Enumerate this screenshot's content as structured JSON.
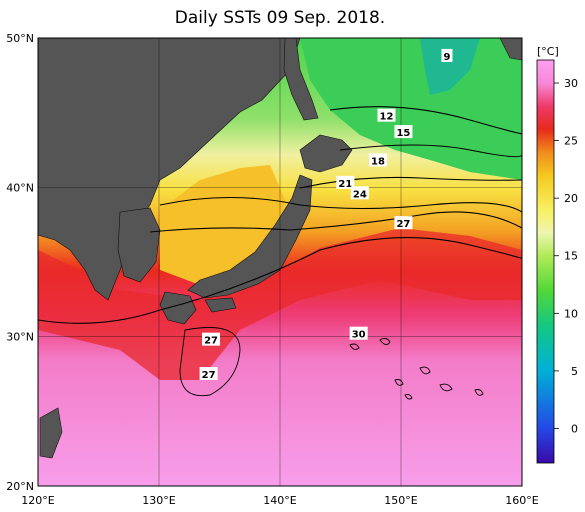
{
  "title": "Daily SSTs 09 Sep. 2018.",
  "map": {
    "lon_min": 120,
    "lon_max": 160,
    "lat_min": 20,
    "lat_max": 50,
    "lat_ticks": [
      "50°N",
      "40°N",
      "30°N",
      "20°N"
    ],
    "lon_ticks": [
      "120°E",
      "130°E",
      "140°E",
      "150°E",
      "160°E"
    ]
  },
  "isotherm_labels": [
    {
      "text": "9",
      "lon": 153.8,
      "lat": 48.8
    },
    {
      "text": "12",
      "lon": 148.8,
      "lat": 44.8
    },
    {
      "text": "15",
      "lon": 150.2,
      "lat": 43.7
    },
    {
      "text": "18",
      "lon": 148.1,
      "lat": 41.8
    },
    {
      "text": "21",
      "lon": 145.4,
      "lat": 40.3
    },
    {
      "text": "24",
      "lon": 146.6,
      "lat": 39.6
    },
    {
      "text": "27",
      "lon": 150.2,
      "lat": 37.6
    },
    {
      "text": "30",
      "lon": 146.5,
      "lat": 30.2
    },
    {
      "text": "27",
      "lon": 134.3,
      "lat": 29.8
    },
    {
      "text": "27",
      "lon": 134.1,
      "lat": 27.5
    }
  ],
  "colorbar": {
    "unit": "[°C]",
    "min": -3,
    "max": 32,
    "ticks": [
      "30",
      "25",
      "20",
      "15",
      "10",
      "5",
      "0"
    ],
    "tick_values": [
      30,
      25,
      20,
      15,
      10,
      5,
      0
    ],
    "stops": [
      {
        "v": -3,
        "c": "#3a0aa8"
      },
      {
        "v": 0,
        "c": "#2448e6"
      },
      {
        "v": 5,
        "c": "#00b0d8"
      },
      {
        "v": 9,
        "c": "#14c880"
      },
      {
        "v": 12,
        "c": "#52d838"
      },
      {
        "v": 15,
        "c": "#b0ea58"
      },
      {
        "v": 17,
        "c": "#eef6b0"
      },
      {
        "v": 19,
        "c": "#f8f060"
      },
      {
        "v": 22,
        "c": "#f4c820"
      },
      {
        "v": 24,
        "c": "#f28a1c"
      },
      {
        "v": 26,
        "c": "#e82a1c"
      },
      {
        "v": 28,
        "c": "#ee3a6a"
      },
      {
        "v": 30,
        "c": "#f888d8"
      },
      {
        "v": 32,
        "c": "#ff9ef0"
      }
    ]
  },
  "colors": {
    "land": "#555555",
    "sea_warm": "#f59ae6",
    "frame": "#000000"
  }
}
